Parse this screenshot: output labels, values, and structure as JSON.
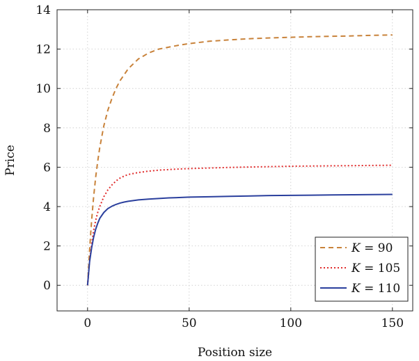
{
  "chart_data": {
    "type": "line",
    "title": "",
    "xlabel": "Position size",
    "ylabel": "Price",
    "xlim": [
      -15,
      160
    ],
    "ylim": [
      -1.3,
      14
    ],
    "xticks": [
      0,
      50,
      100,
      150
    ],
    "yticks": [
      0,
      2,
      4,
      6,
      8,
      10,
      12,
      14
    ],
    "grid": true,
    "legend_position": "bottom-right",
    "x": [
      0,
      1,
      2,
      3,
      4,
      5,
      6,
      8,
      10,
      12,
      14,
      16,
      18,
      20,
      25,
      30,
      35,
      40,
      45,
      50,
      60,
      70,
      80,
      90,
      100,
      110,
      120,
      130,
      140,
      150
    ],
    "series": [
      {
        "name": "K = 90",
        "legend_var": "K",
        "legend_value": "90",
        "color": "#c8823a",
        "dash": "dashed",
        "values": [
          0.0,
          1.8,
          3.3,
          4.5,
          5.5,
          6.3,
          7.0,
          8.1,
          8.9,
          9.5,
          10.0,
          10.4,
          10.7,
          11.0,
          11.5,
          11.8,
          12.0,
          12.1,
          12.2,
          12.28,
          12.4,
          12.47,
          12.53,
          12.57,
          12.6,
          12.63,
          12.65,
          12.67,
          12.7,
          12.72
        ]
      },
      {
        "name": "K = 105",
        "legend_var": "K",
        "legend_value": "105",
        "color": "#e02b2b",
        "dash": "dotted",
        "values": [
          0.0,
          1.2,
          2.1,
          2.8,
          3.3,
          3.7,
          4.0,
          4.5,
          4.85,
          5.1,
          5.3,
          5.45,
          5.55,
          5.63,
          5.73,
          5.8,
          5.85,
          5.88,
          5.91,
          5.93,
          5.96,
          5.99,
          6.01,
          6.03,
          6.05,
          6.06,
          6.07,
          6.08,
          6.09,
          6.1
        ]
      },
      {
        "name": "K = 110",
        "legend_var": "K",
        "legend_value": "110",
        "color": "#2a3f9d",
        "dash": "solid",
        "values": [
          0.0,
          1.2,
          1.9,
          2.45,
          2.85,
          3.15,
          3.4,
          3.7,
          3.9,
          4.02,
          4.11,
          4.18,
          4.23,
          4.27,
          4.34,
          4.38,
          4.41,
          4.44,
          4.46,
          4.48,
          4.5,
          4.52,
          4.54,
          4.56,
          4.57,
          4.58,
          4.59,
          4.6,
          4.61,
          4.62
        ]
      }
    ]
  }
}
